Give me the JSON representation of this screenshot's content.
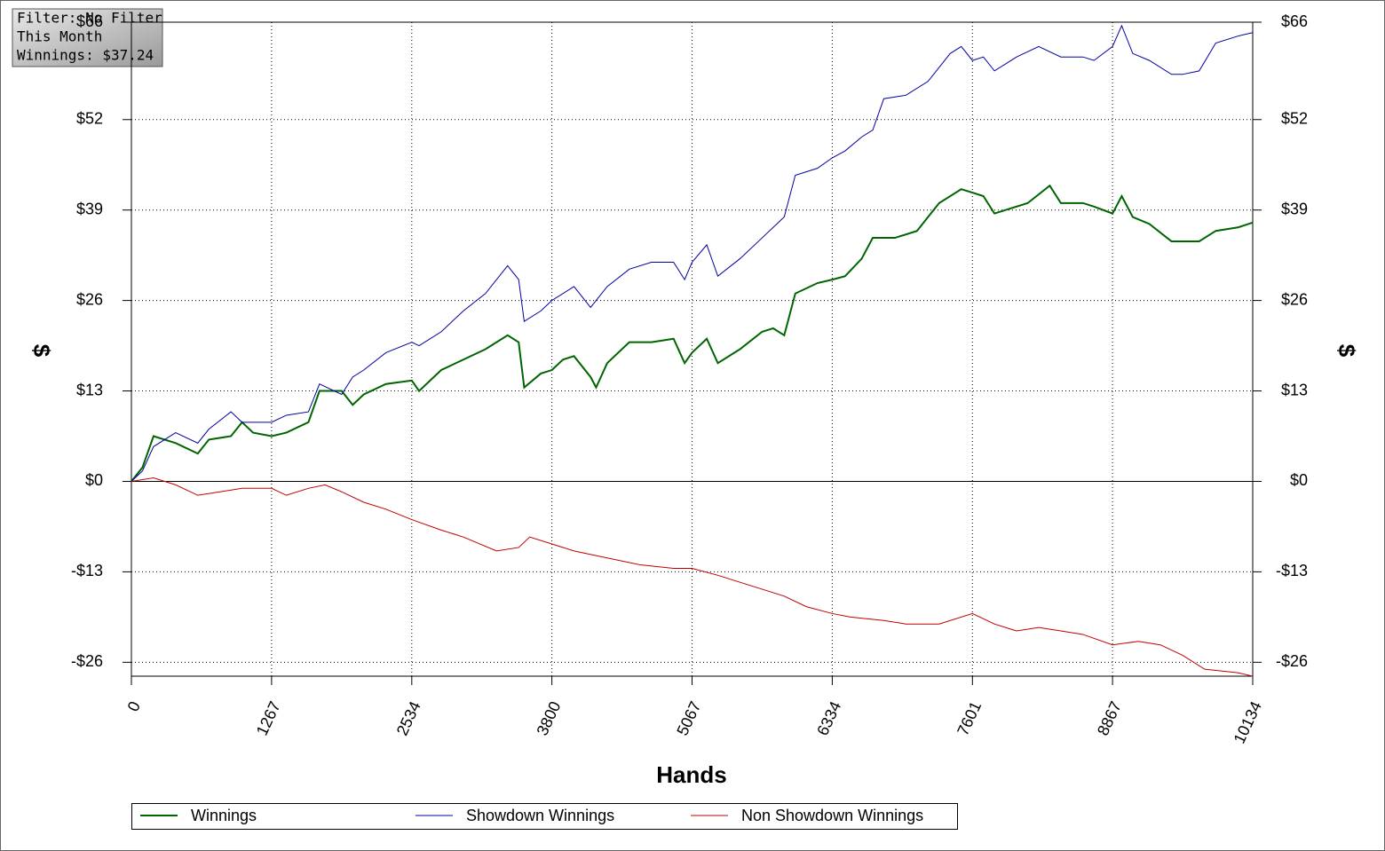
{
  "chart_data": {
    "type": "line",
    "annotations": [
      "Filter: No Filter",
      "This Month",
      "Winnings: $37.24"
    ],
    "xlabel": "Hands",
    "ylabel": "$",
    "y2label": "$",
    "xlim": [
      0,
      10134
    ],
    "xticks": [
      0,
      1267,
      2534,
      3800,
      5067,
      6334,
      7601,
      8867,
      10134
    ],
    "ylim": [
      -28,
      66
    ],
    "yticks": [
      {
        "value": -26,
        "label": "-$26"
      },
      {
        "value": -13,
        "label": "-$13"
      },
      {
        "value": 0,
        "label": "$0"
      },
      {
        "value": 13,
        "label": "$13"
      },
      {
        "value": 26,
        "label": "$26"
      },
      {
        "value": 39,
        "label": "$39"
      },
      {
        "value": 52,
        "label": "$52"
      },
      {
        "value": 66,
        "label": "$66"
      }
    ],
    "y2lim": [
      -28,
      66
    ],
    "y2ticks": [
      {
        "value": -26,
        "label": "-$26"
      },
      {
        "value": -13,
        "label": "-$13"
      },
      {
        "value": 0,
        "label": "$0"
      },
      {
        "value": 13,
        "label": "$13"
      },
      {
        "value": 26,
        "label": "$26"
      },
      {
        "value": 39,
        "label": "$39"
      },
      {
        "value": 52,
        "label": "$52"
      },
      {
        "value": 66,
        "label": "$66"
      }
    ],
    "grid": true,
    "legend": "bottom",
    "series": [
      {
        "name": "Winnings",
        "color": "#006400",
        "x": [
          0,
          100,
          200,
          400,
          600,
          700,
          900,
          1000,
          1100,
          1267,
          1400,
          1600,
          1700,
          1900,
          2000,
          2100,
          2300,
          2534,
          2600,
          2800,
          3000,
          3200,
          3400,
          3500,
          3550,
          3700,
          3800,
          3900,
          4000,
          4150,
          4200,
          4300,
          4500,
          4700,
          4900,
          5000,
          5067,
          5200,
          5300,
          5500,
          5700,
          5800,
          5900,
          6000,
          6200,
          6334,
          6450,
          6600,
          6700,
          6900,
          7100,
          7300,
          7500,
          7601,
          7700,
          7800,
          7900,
          8100,
          8300,
          8400,
          8600,
          8700,
          8867,
          8950,
          9050,
          9200,
          9400,
          9500,
          9650,
          9800,
          10000,
          10134
        ],
        "values": [
          0,
          2,
          6.5,
          5.5,
          4,
          6,
          6.5,
          8.5,
          7,
          6.5,
          7,
          8.5,
          13,
          13,
          11,
          12.5,
          14,
          14.5,
          13,
          16,
          17.5,
          19,
          21,
          20,
          13.5,
          15.5,
          16,
          17.5,
          18,
          15,
          13.5,
          17,
          20,
          20,
          20.5,
          17,
          18.5,
          20.5,
          17,
          19,
          21.5,
          22,
          21,
          27,
          28.5,
          29,
          29.5,
          32,
          35,
          35,
          36,
          40,
          42,
          41.5,
          41,
          38.5,
          39,
          40,
          42.5,
          40,
          40,
          39.5,
          38.5,
          41,
          38,
          37,
          34.5,
          34.5,
          34.5,
          36,
          36.5,
          37.2
        ]
      },
      {
        "name": "Showdown Winnings",
        "color": "#0000a0",
        "x": [
          0,
          100,
          200,
          400,
          600,
          700,
          900,
          1000,
          1267,
          1400,
          1600,
          1700,
          1900,
          2000,
          2100,
          2300,
          2534,
          2600,
          2800,
          3000,
          3200,
          3400,
          3500,
          3550,
          3700,
          3800,
          3900,
          4000,
          4150,
          4300,
          4500,
          4700,
          4900,
          5000,
          5067,
          5200,
          5300,
          5500,
          5700,
          5800,
          5900,
          6000,
          6200,
          6334,
          6450,
          6600,
          6700,
          6800,
          7000,
          7200,
          7400,
          7500,
          7601,
          7700,
          7800,
          8000,
          8200,
          8400,
          8600,
          8700,
          8867,
          8950,
          9050,
          9200,
          9400,
          9500,
          9650,
          9800,
          10000,
          10134
        ],
        "values": [
          0,
          1.5,
          5,
          7,
          5.5,
          7.5,
          10,
          8.5,
          8.5,
          9.5,
          10,
          14,
          12.5,
          15,
          16,
          18.5,
          20,
          19.5,
          21.5,
          24.5,
          27,
          31,
          29,
          23,
          24.5,
          26,
          27,
          28,
          25,
          28,
          30.5,
          31.5,
          31.5,
          29,
          31.5,
          34,
          29.5,
          32,
          35,
          36.5,
          38,
          44,
          45,
          46.5,
          47.5,
          49.5,
          50.5,
          55,
          55.5,
          57.5,
          61.5,
          62.5,
          60.5,
          61,
          59,
          61,
          62.5,
          61,
          61,
          60.5,
          62.5,
          65.5,
          61.5,
          60.5,
          58.5,
          58.5,
          59,
          63,
          64,
          64.5
        ]
      },
      {
        "name": "Non Showdown Winnings",
        "color": "#c00000",
        "x": [
          0,
          200,
          400,
          600,
          800,
          1000,
          1267,
          1400,
          1600,
          1750,
          1900,
          2100,
          2300,
          2534,
          2800,
          3000,
          3300,
          3500,
          3600,
          3800,
          4000,
          4300,
          4600,
          4900,
          5067,
          5300,
          5600,
          5900,
          6100,
          6334,
          6500,
          6800,
          7000,
          7300,
          7601,
          7800,
          8000,
          8200,
          8400,
          8600,
          8867,
          9100,
          9300,
          9500,
          9700,
          10000,
          10134
        ],
        "values": [
          0,
          0.5,
          -0.5,
          -2,
          -1.5,
          -1,
          -1,
          -2,
          -1,
          -0.5,
          -1.5,
          -3,
          -4,
          -5.5,
          -7,
          -8,
          -10,
          -9.5,
          -8,
          -9,
          -10,
          -11,
          -12,
          -12.5,
          -12.5,
          -13.5,
          -15,
          -16.5,
          -18,
          -19,
          -19.5,
          -20,
          -20.5,
          -20.5,
          -19,
          -20.5,
          -21.5,
          -21,
          -21.5,
          -22,
          -23.5,
          -23,
          -23.5,
          -25,
          -27,
          -27.5,
          -28
        ]
      }
    ]
  }
}
